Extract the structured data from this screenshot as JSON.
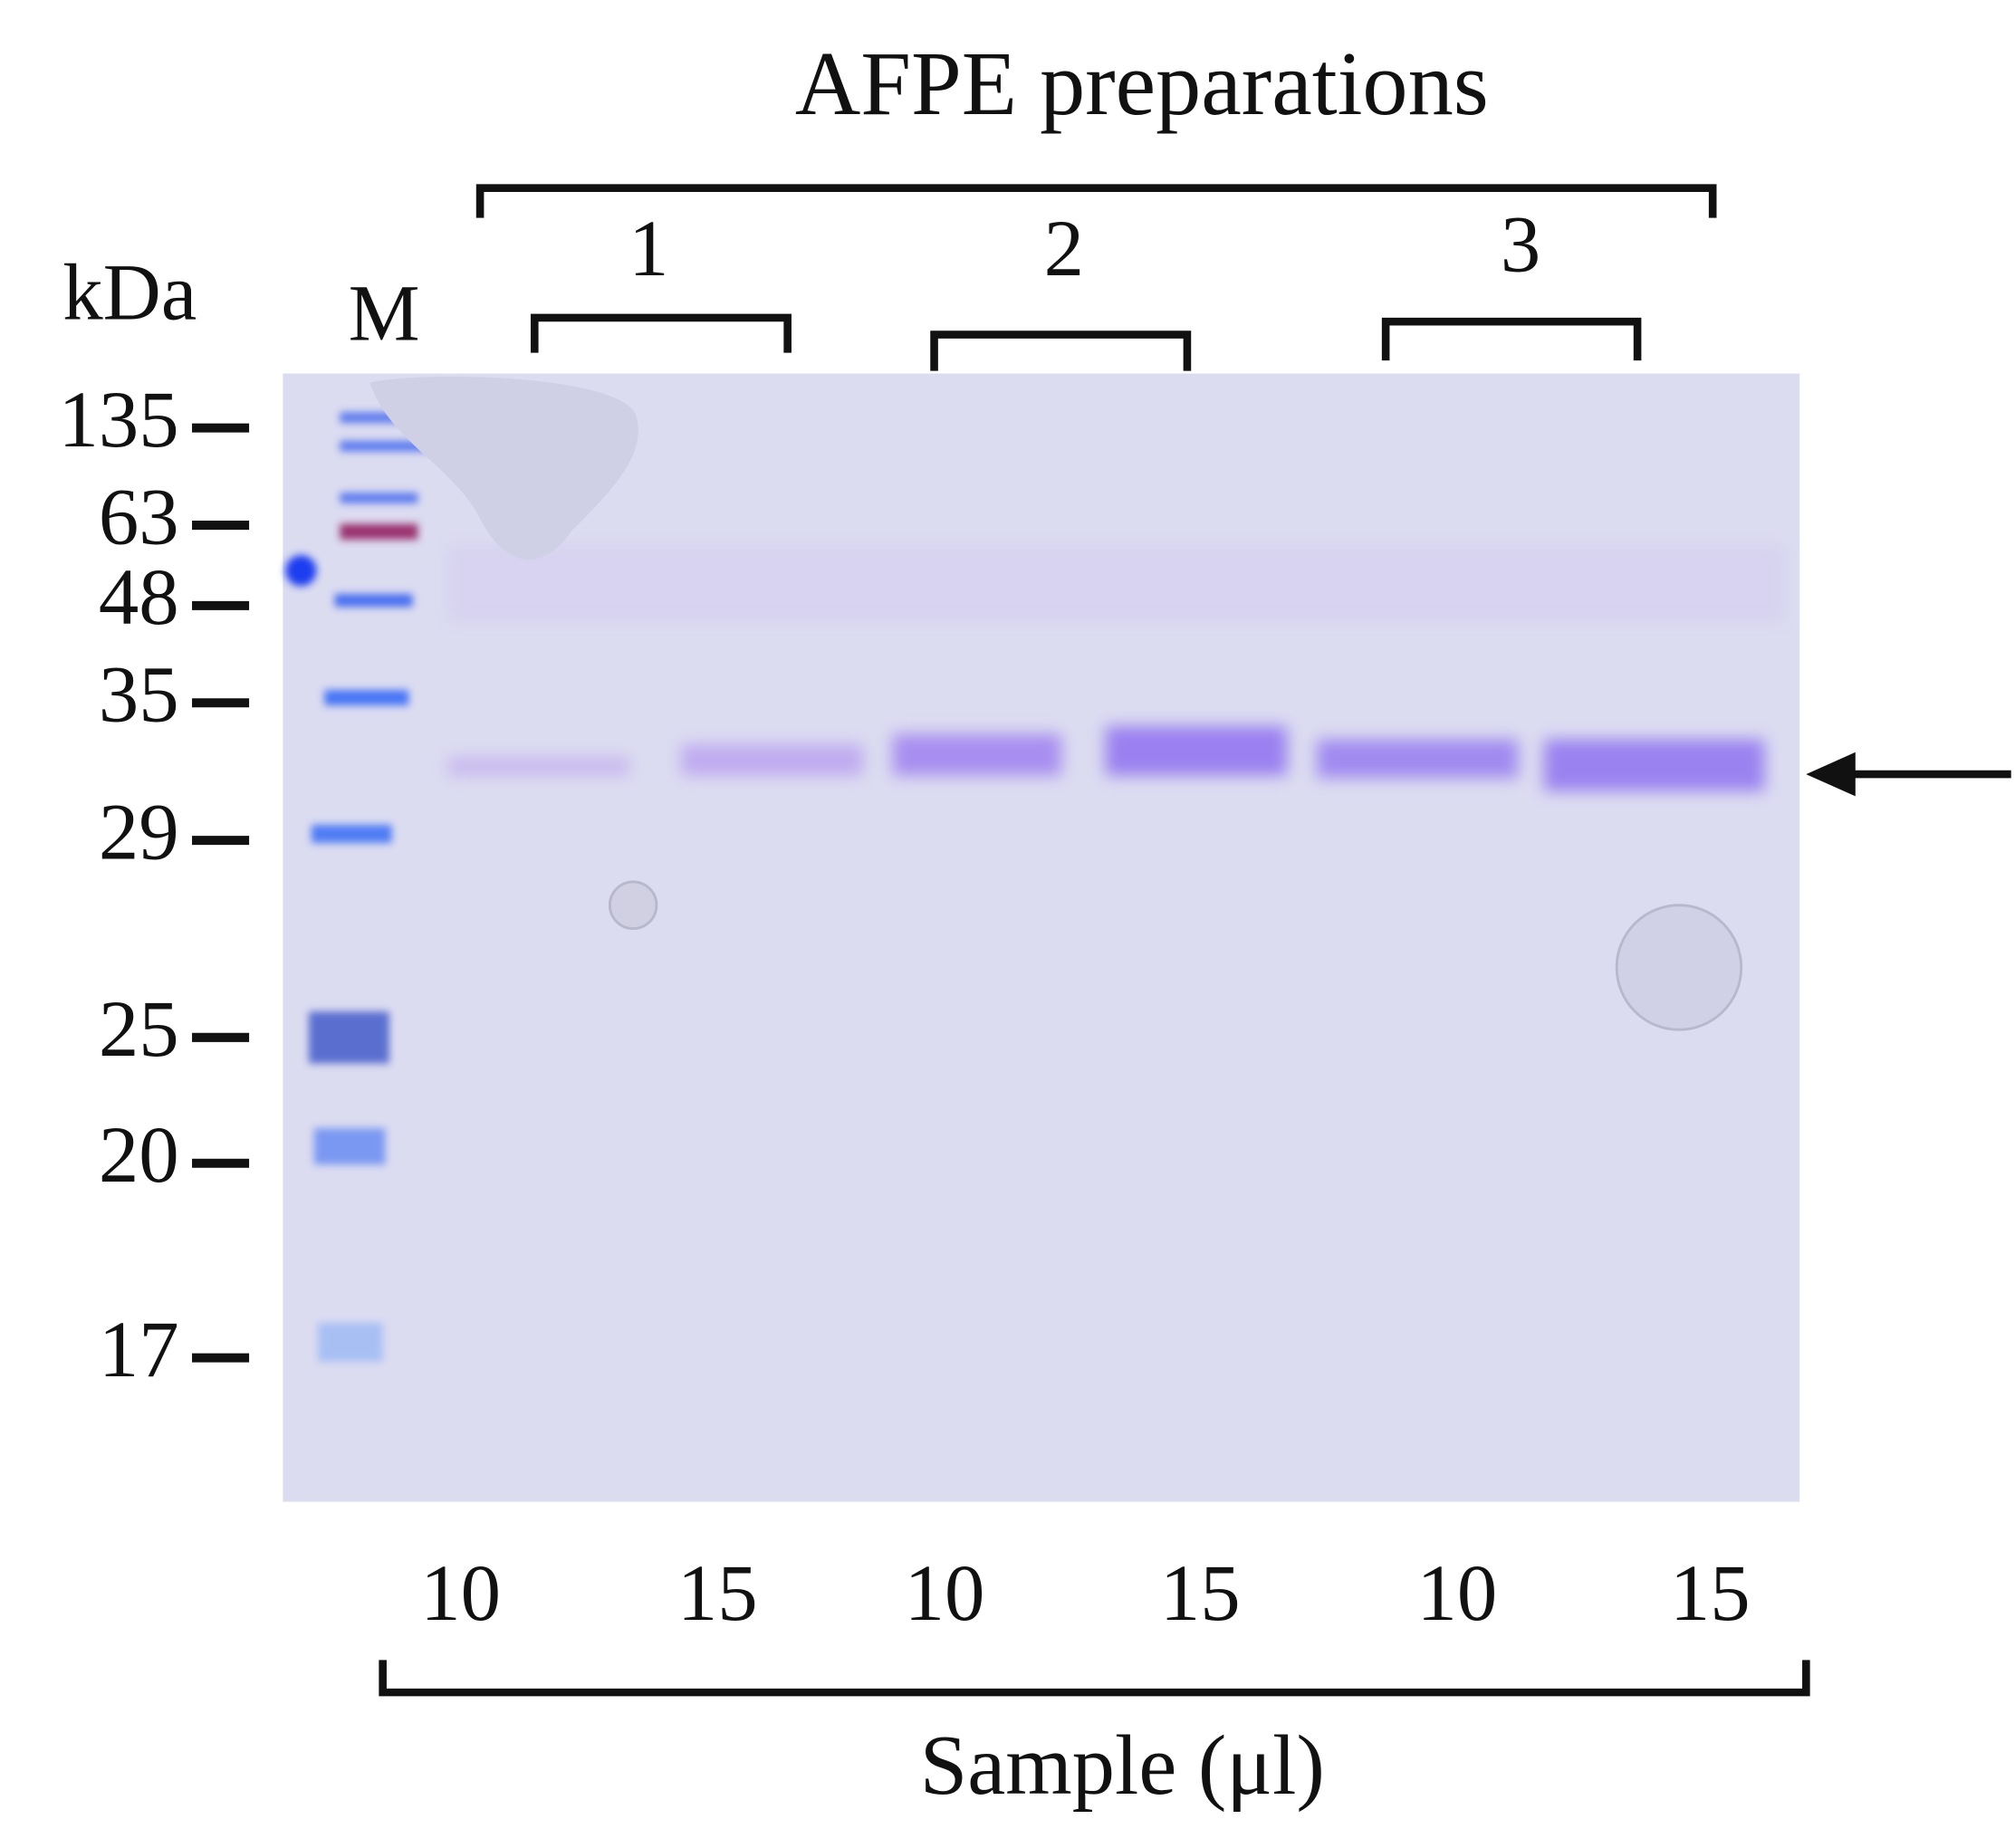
{
  "header": {
    "title": "AFPE preparations",
    "groups": [
      "1",
      "2",
      "3"
    ]
  },
  "axis_label": "kDa",
  "marker_lane": "M",
  "markers": [
    135,
    63,
    48,
    35,
    29,
    25,
    20,
    17
  ],
  "samples": [
    10,
    15,
    10,
    15,
    10,
    15
  ],
  "footer": {
    "label": "Sample (μl)"
  }
}
